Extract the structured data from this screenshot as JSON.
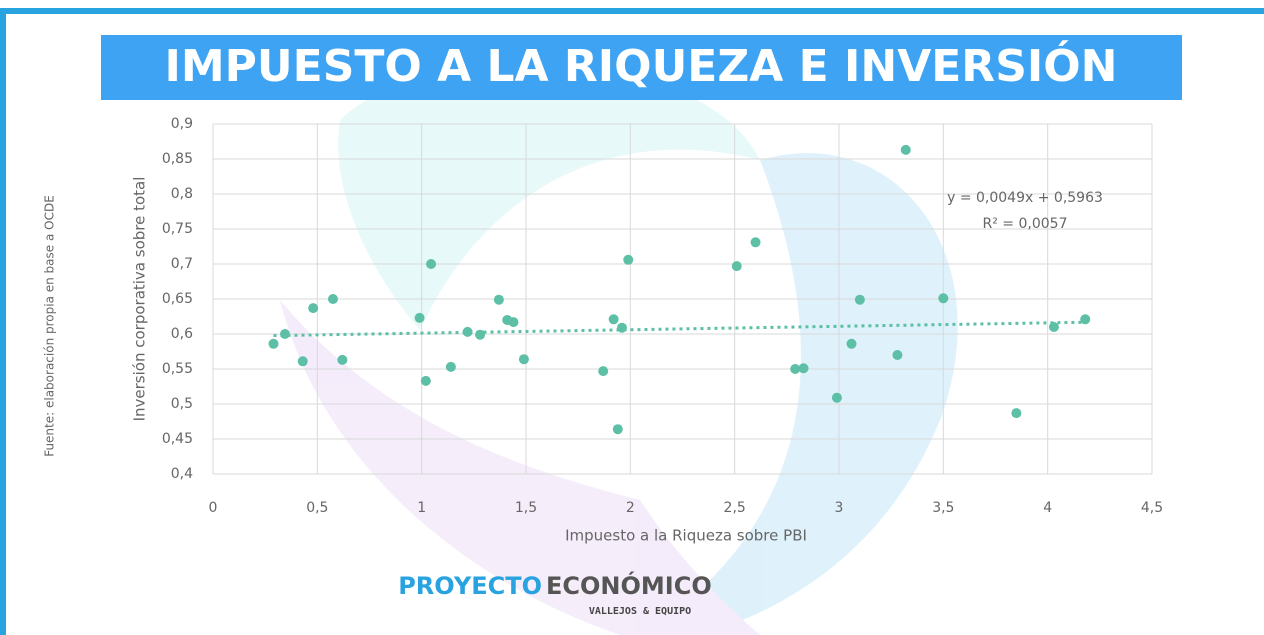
{
  "chart_data": {
    "type": "scatter",
    "title": "IMPUESTO A LA RIQUEZA E INVERSIÓN",
    "x_label": "Impuesto a la Riqueza sobre PBI",
    "y_label": "Inversión corporativa sobre total",
    "source": "Fuente: elaboración propia en base a OCDE",
    "brand": {
      "first": "PROYECTO",
      "second": "ECONÓMICO",
      "tagline": "VALLEJOS & EQUIPO"
    },
    "color": "#5cbfa6",
    "grid": true,
    "x": [
      0.29,
      0.345,
      0.43,
      0.48,
      0.575,
      0.62,
      0.99,
      1.02,
      1.045,
      1.14,
      1.22,
      1.28,
      1.37,
      1.41,
      1.44,
      1.49,
      1.87,
      1.92,
      1.94,
      1.96,
      1.99,
      2.51,
      2.6,
      2.79,
      2.83,
      2.99,
      3.06,
      3.1,
      3.28,
      3.32,
      3.5,
      3.85,
      4.03,
      4.18
    ],
    "values": [
      0.586,
      0.6,
      0.561,
      0.637,
      0.65,
      0.563,
      0.623,
      0.533,
      0.7,
      0.553,
      0.603,
      0.599,
      0.649,
      0.62,
      0.617,
      0.564,
      0.547,
      0.621,
      0.464,
      0.609,
      0.706,
      0.697,
      0.731,
      0.55,
      0.551,
      0.509,
      0.586,
      0.649,
      0.57,
      0.863,
      0.651,
      0.487,
      0.61,
      0.621
    ],
    "trendline": {
      "slope": 0.0049,
      "intercept": 0.5963,
      "equation": "y = 0,0049x + 0,5963",
      "r_squared": "R² = 0,0057"
    },
    "xlim": [
      0,
      4.5
    ],
    "xticks": [
      0,
      {
        "value": 0.5,
        "label": "0,5"
      },
      1,
      {
        "value": 1.5,
        "label": "1,5"
      },
      2,
      {
        "value": 2.5,
        "label": "2,5"
      },
      3,
      {
        "value": 3.5,
        "label": "3,5"
      },
      4,
      {
        "value": 4.5,
        "label": "4,5"
      }
    ],
    "ylim": [
      0.4,
      0.9
    ],
    "yticks": [
      {
        "value": 0.4,
        "label": "0,4"
      },
      {
        "value": 0.45,
        "label": "0,45"
      },
      {
        "value": 0.5,
        "label": "0,5"
      },
      {
        "value": 0.55,
        "label": "0,55"
      },
      {
        "value": 0.6,
        "label": "0,6"
      },
      {
        "value": 0.65,
        "label": "0,65"
      },
      {
        "value": 0.7,
        "label": "0,7"
      },
      {
        "value": 0.75,
        "label": "0,75"
      },
      {
        "value": 0.8,
        "label": "0,8"
      },
      {
        "value": 0.85,
        "label": "0,85"
      },
      {
        "value": 0.9,
        "label": "0,9"
      }
    ]
  }
}
